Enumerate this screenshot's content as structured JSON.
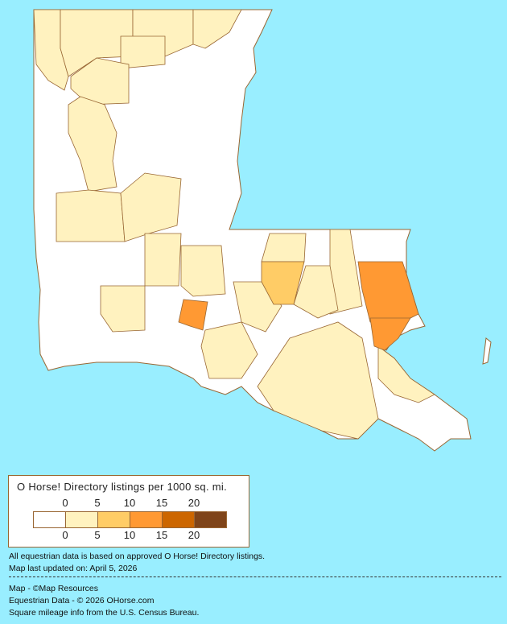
{
  "legend": {
    "title": "O Horse! Directory listings per 1000 sq. mi.",
    "ticks": [
      "0",
      "5",
      "10",
      "15",
      "20"
    ],
    "colors": [
      "#FFFFFF",
      "#FFF2BF",
      "#FFCC66",
      "#FF9933",
      "#CC6600",
      "#7F4419"
    ]
  },
  "background_color": "#99EEFF",
  "border_color": "#996633",
  "notes": {
    "data_source": "All equestrian data is based on approved O Horse! Directory listings.",
    "updated": "Map last updated on: April 5, 2026"
  },
  "credits": {
    "map": "Map - ©Map Resources",
    "equestrian": "Equestrian Data - © 2026 OHorse.com",
    "census": "Square mileage info from the U.S. Census Bureau."
  },
  "parish_fill_levels": [
    1,
    1,
    1,
    1,
    1,
    1,
    1,
    1,
    2,
    3,
    3,
    3,
    1,
    1,
    1,
    1,
    1,
    1,
    1
  ]
}
